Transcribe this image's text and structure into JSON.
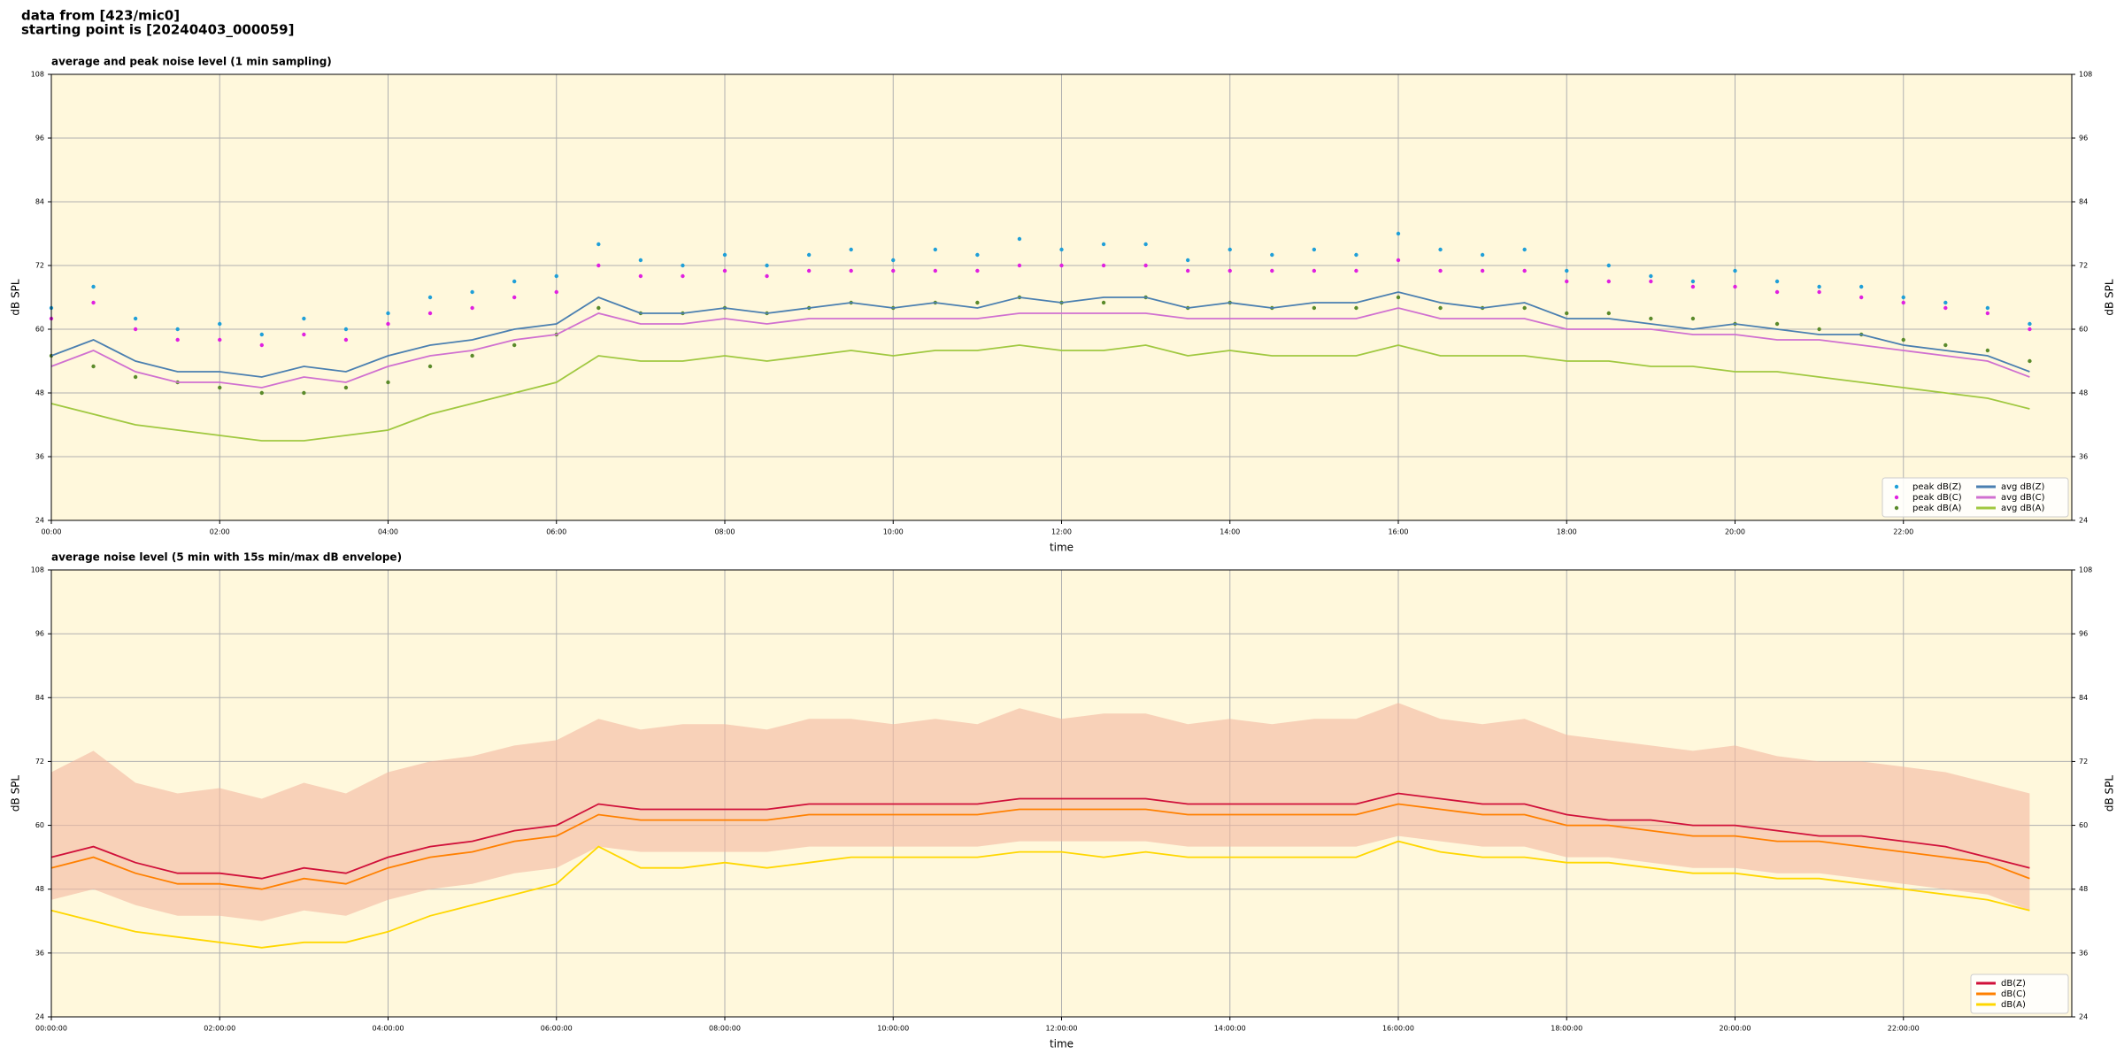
{
  "header": {
    "source": "data from [423/mic0]",
    "start": "starting point is [20240403_000059]"
  },
  "chart_data": [
    {
      "type": "line",
      "title": "average and peak noise level (1 min sampling)",
      "x_label": "time",
      "y_label": "dB SPL",
      "xlim": [
        0,
        24
      ],
      "ylim": [
        24,
        108
      ],
      "xticks": [
        {
          "value": 0,
          "label": "00:00"
        },
        {
          "value": 2,
          "label": "02:00"
        },
        {
          "value": 4,
          "label": "04:00"
        },
        {
          "value": 6,
          "label": "06:00"
        },
        {
          "value": 8,
          "label": "08:00"
        },
        {
          "value": 10,
          "label": "10:00"
        },
        {
          "value": 12,
          "label": "12:00"
        },
        {
          "value": 14,
          "label": "14:00"
        },
        {
          "value": 16,
          "label": "16:00"
        },
        {
          "value": 18,
          "label": "18:00"
        },
        {
          "value": 20,
          "label": "20:00"
        },
        {
          "value": 22,
          "label": "22:00"
        }
      ],
      "yticks": [
        24,
        36,
        48,
        60,
        72,
        84,
        96,
        108
      ],
      "grid": true,
      "background": "#fff8dc",
      "legend": "lower right",
      "legend_columns": 2,
      "x": [
        0,
        0.5,
        1,
        1.5,
        2,
        2.5,
        3,
        3.5,
        4,
        4.5,
        5,
        5.5,
        6,
        6.5,
        7,
        7.5,
        8,
        8.5,
        9,
        9.5,
        10,
        10.5,
        11,
        11.5,
        12,
        12.5,
        13,
        13.5,
        14,
        14.5,
        15,
        15.5,
        16,
        16.5,
        17,
        17.5,
        18,
        18.5,
        19,
        19.5,
        20,
        20.5,
        21,
        21.5,
        22,
        22.5,
        23,
        23.5
      ],
      "series": [
        {
          "name": "peak dB(Z)",
          "kind": "scatter",
          "color": "#1f9fd8",
          "values": [
            64,
            68,
            62,
            60,
            61,
            59,
            62,
            60,
            63,
            66,
            67,
            69,
            70,
            76,
            73,
            72,
            74,
            72,
            74,
            75,
            73,
            75,
            74,
            77,
            75,
            76,
            76,
            73,
            75,
            74,
            75,
            74,
            78,
            75,
            74,
            75,
            71,
            72,
            70,
            69,
            71,
            69,
            68,
            68,
            66,
            65,
            64,
            61
          ]
        },
        {
          "name": "peak dB(C)",
          "kind": "scatter",
          "color": "#e020e0",
          "values": [
            62,
            65,
            60,
            58,
            58,
            57,
            59,
            58,
            61,
            63,
            64,
            66,
            67,
            72,
            70,
            70,
            71,
            70,
            71,
            71,
            71,
            71,
            71,
            72,
            72,
            72,
            72,
            71,
            71,
            71,
            71,
            71,
            73,
            71,
            71,
            71,
            69,
            69,
            69,
            68,
            68,
            67,
            67,
            66,
            65,
            64,
            63,
            60
          ]
        },
        {
          "name": "peak dB(A)",
          "kind": "scatter",
          "color": "#5a8a2a",
          "values": [
            55,
            53,
            51,
            50,
            49,
            48,
            48,
            49,
            50,
            53,
            55,
            57,
            59,
            64,
            63,
            63,
            64,
            63,
            64,
            65,
            64,
            65,
            65,
            66,
            65,
            65,
            66,
            64,
            65,
            64,
            64,
            64,
            66,
            64,
            64,
            64,
            63,
            63,
            62,
            62,
            61,
            61,
            60,
            59,
            58,
            57,
            56,
            54
          ]
        },
        {
          "name": "avg dB(Z)",
          "kind": "line",
          "color": "#4a7fb0",
          "values": [
            55,
            58,
            54,
            52,
            52,
            51,
            53,
            52,
            55,
            57,
            58,
            60,
            61,
            66,
            63,
            63,
            64,
            63,
            64,
            65,
            64,
            65,
            64,
            66,
            65,
            66,
            66,
            64,
            65,
            64,
            65,
            65,
            67,
            65,
            64,
            65,
            62,
            62,
            61,
            60,
            61,
            60,
            59,
            59,
            57,
            56,
            55,
            52
          ]
        },
        {
          "name": "avg dB(C)",
          "kind": "line",
          "color": "#d070d0",
          "values": [
            53,
            56,
            52,
            50,
            50,
            49,
            51,
            50,
            53,
            55,
            56,
            58,
            59,
            63,
            61,
            61,
            62,
            61,
            62,
            62,
            62,
            62,
            62,
            63,
            63,
            63,
            63,
            62,
            62,
            62,
            62,
            62,
            64,
            62,
            62,
            62,
            60,
            60,
            60,
            59,
            59,
            58,
            58,
            57,
            56,
            55,
            54,
            51
          ]
        },
        {
          "name": "avg dB(A)",
          "kind": "line",
          "color": "#a0c840",
          "values": [
            46,
            44,
            42,
            41,
            40,
            39,
            39,
            40,
            41,
            44,
            46,
            48,
            50,
            55,
            54,
            54,
            55,
            54,
            55,
            56,
            55,
            56,
            56,
            57,
            56,
            56,
            57,
            55,
            56,
            55,
            55,
            55,
            57,
            55,
            55,
            55,
            54,
            54,
            53,
            53,
            52,
            52,
            51,
            50,
            49,
            48,
            47,
            45
          ]
        }
      ]
    },
    {
      "type": "line",
      "title": "average noise level (5 min with 15s min/max dB envelope)",
      "x_label": "time",
      "y_label": "dB SPL",
      "xlim": [
        0,
        24
      ],
      "ylim": [
        24,
        108
      ],
      "xticks": [
        {
          "value": 0,
          "label": "00:00:00"
        },
        {
          "value": 2,
          "label": "02:00:00"
        },
        {
          "value": 4,
          "label": "04:00:00"
        },
        {
          "value": 6,
          "label": "06:00:00"
        },
        {
          "value": 8,
          "label": "08:00:00"
        },
        {
          "value": 10,
          "label": "10:00:00"
        },
        {
          "value": 12,
          "label": "12:00:00"
        },
        {
          "value": 14,
          "label": "14:00:00"
        },
        {
          "value": 16,
          "label": "16:00:00"
        },
        {
          "value": 18,
          "label": "18:00:00"
        },
        {
          "value": 20,
          "label": "20:00:00"
        },
        {
          "value": 22,
          "label": "22:00:00"
        }
      ],
      "yticks": [
        24,
        36,
        48,
        60,
        72,
        84,
        96,
        108
      ],
      "grid": true,
      "background": "#fff8dc",
      "legend": "lower right",
      "legend_columns": 1,
      "x": [
        0,
        0.5,
        1,
        1.5,
        2,
        2.5,
        3,
        3.5,
        4,
        4.5,
        5,
        5.5,
        6,
        6.5,
        7,
        7.5,
        8,
        8.5,
        9,
        9.5,
        10,
        10.5,
        11,
        11.5,
        12,
        12.5,
        13,
        13.5,
        14,
        14.5,
        15,
        15.5,
        16,
        16.5,
        17,
        17.5,
        18,
        18.5,
        19,
        19.5,
        20,
        20.5,
        21,
        21.5,
        22,
        22.5,
        23,
        23.5
      ],
      "envelope": {
        "color": "#f4b8a0",
        "lower": [
          46,
          48,
          45,
          43,
          43,
          42,
          44,
          43,
          46,
          48,
          49,
          51,
          52,
          56,
          55,
          55,
          55,
          55,
          56,
          56,
          56,
          56,
          56,
          57,
          57,
          57,
          57,
          56,
          56,
          56,
          56,
          56,
          58,
          57,
          56,
          56,
          54,
          54,
          53,
          52,
          52,
          51,
          51,
          50,
          49,
          48,
          47,
          44
        ],
        "upper": [
          70,
          74,
          68,
          66,
          67,
          65,
          68,
          66,
          70,
          72,
          73,
          75,
          76,
          80,
          78,
          79,
          79,
          78,
          80,
          80,
          79,
          80,
          79,
          82,
          80,
          81,
          81,
          79,
          80,
          79,
          80,
          80,
          83,
          80,
          79,
          80,
          77,
          76,
          75,
          74,
          75,
          73,
          72,
          72,
          71,
          70,
          68,
          66
        ]
      },
      "series": [
        {
          "name": "dB(Z)",
          "kind": "line",
          "color": "#d0103a",
          "values": [
            54,
            56,
            53,
            51,
            51,
            50,
            52,
            51,
            54,
            56,
            57,
            59,
            60,
            64,
            63,
            63,
            63,
            63,
            64,
            64,
            64,
            64,
            64,
            65,
            65,
            65,
            65,
            64,
            64,
            64,
            64,
            64,
            66,
            65,
            64,
            64,
            62,
            61,
            61,
            60,
            60,
            59,
            58,
            58,
            57,
            56,
            54,
            52
          ]
        },
        {
          "name": "dB(C)",
          "kind": "line",
          "color": "#ff8000",
          "values": [
            52,
            54,
            51,
            49,
            49,
            48,
            50,
            49,
            52,
            54,
            55,
            57,
            58,
            62,
            61,
            61,
            61,
            61,
            62,
            62,
            62,
            62,
            62,
            63,
            63,
            63,
            63,
            62,
            62,
            62,
            62,
            62,
            64,
            63,
            62,
            62,
            60,
            60,
            59,
            58,
            58,
            57,
            57,
            56,
            55,
            54,
            53,
            50
          ]
        },
        {
          "name": "dB(A)",
          "kind": "line",
          "color": "#ffd700",
          "values": [
            44,
            42,
            40,
            39,
            38,
            37,
            38,
            38,
            40,
            43,
            45,
            47,
            49,
            56,
            52,
            52,
            53,
            52,
            53,
            54,
            54,
            54,
            54,
            55,
            55,
            54,
            55,
            54,
            54,
            54,
            54,
            54,
            57,
            55,
            54,
            54,
            53,
            53,
            52,
            51,
            51,
            50,
            50,
            49,
            48,
            47,
            46,
            44
          ]
        }
      ]
    }
  ]
}
